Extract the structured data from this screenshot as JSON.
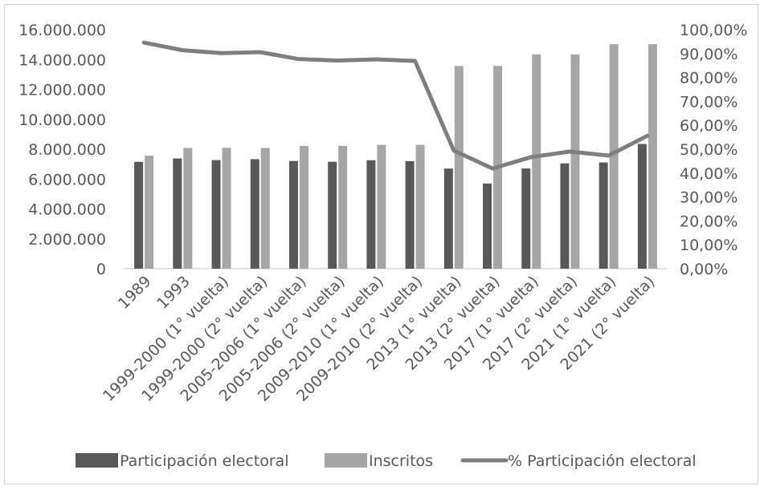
{
  "chart_data": {
    "type": "bar+line",
    "title": "",
    "categories": [
      "1989",
      "1993",
      "1999-2000 (1° vuelta)",
      "1999-2000 (2° vuelta)",
      "2005-2006 (1° vuelta)",
      "2005-2006 (2° vuelta)",
      "2009-2010 (1° vuelta)",
      "2009-2010 (2° vuelta)",
      "2013 (1° vuelta)",
      "2013 (2° vuelta)",
      "2017 (1° vuelta)",
      "2017 (2° vuelta)",
      "2021 (1° vuelta)",
      "2021 (2° vuelta)"
    ],
    "series": [
      {
        "name": "Participación electoral",
        "kind": "bar",
        "axis": "left",
        "color": "#595959",
        "values": [
          7150000,
          7380000,
          7270000,
          7330000,
          7210000,
          7160000,
          7260000,
          7200000,
          6700000,
          5700000,
          6710000,
          7050000,
          7110000,
          8350000
        ]
      },
      {
        "name": "Inscritos",
        "kind": "bar",
        "axis": "left",
        "color": "#a6a6a6",
        "values": [
          7560000,
          8080000,
          8090000,
          8080000,
          8220000,
          8220000,
          8290000,
          8290000,
          13570000,
          13570000,
          14350000,
          14350000,
          15030000,
          15030000
        ]
      },
      {
        "name": "% Participación electoral",
        "kind": "line",
        "axis": "right",
        "color": "#7f7f7f",
        "values": [
          94.6,
          91.4,
          90.2,
          90.6,
          87.7,
          87.1,
          87.6,
          86.9,
          49.4,
          41.9,
          46.7,
          49.0,
          47.3,
          55.6
        ]
      }
    ],
    "yLeft": {
      "min": 0,
      "max": 16000000,
      "step": 2000000,
      "tick_labels": [
        "0",
        "2.000.000",
        "4.000.000",
        "6.000.000",
        "8.000.000",
        "10.000.000",
        "12.000.000",
        "14.000.000",
        "16.000.000"
      ]
    },
    "yRight": {
      "min": 0,
      "max": 100,
      "step": 10,
      "tick_labels": [
        "0,00%",
        "10,00%",
        "20,00%",
        "30,00%",
        "40,00%",
        "50,00%",
        "60,00%",
        "70,00%",
        "80,00%",
        "90,00%",
        "100,00%"
      ]
    },
    "legend": {
      "placement": "bottom",
      "items": [
        {
          "label": "Participación electoral",
          "kind": "box",
          "color": "#595959"
        },
        {
          "label": "Inscritos",
          "kind": "box",
          "color": "#a6a6a6"
        },
        {
          "label": "% Participación electoral",
          "kind": "line",
          "color": "#7f7f7f"
        }
      ]
    },
    "grid": false
  }
}
